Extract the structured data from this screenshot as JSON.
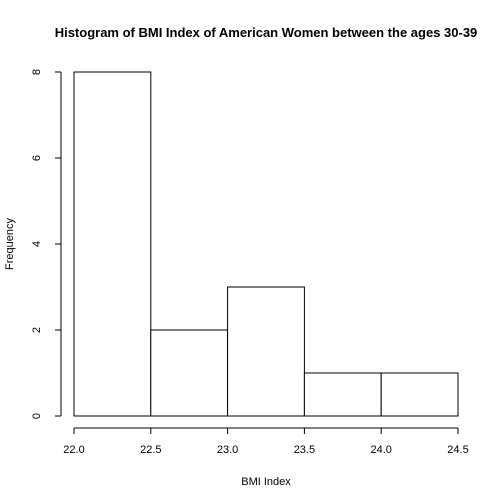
{
  "chart_data": {
    "type": "bar",
    "title": "Histogram of BMI Index of American Women between the ages 30-39",
    "xlabel": "BMI Index",
    "ylabel": "Frequency",
    "bins": [
      {
        "start": 22.0,
        "end": 22.5,
        "count": 8
      },
      {
        "start": 22.5,
        "end": 23.0,
        "count": 2
      },
      {
        "start": 23.0,
        "end": 23.5,
        "count": 3
      },
      {
        "start": 23.5,
        "end": 24.0,
        "count": 1
      },
      {
        "start": 24.0,
        "end": 24.5,
        "count": 1
      }
    ],
    "xlim": [
      22.0,
      24.5
    ],
    "ylim": [
      0,
      8
    ],
    "x_ticks": [
      "22.0",
      "22.5",
      "23.0",
      "23.5",
      "24.0",
      "24.5"
    ],
    "y_ticks": [
      "0",
      "2",
      "4",
      "6",
      "8"
    ],
    "grid": false,
    "colors": {
      "bar_fill": "#ffffff",
      "bar_stroke": "#000000"
    }
  }
}
